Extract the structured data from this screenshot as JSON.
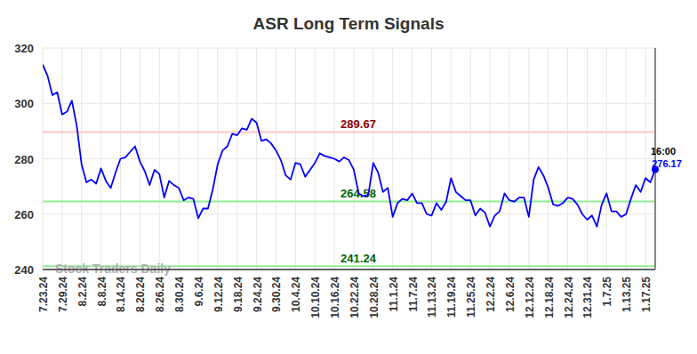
{
  "chart_data": {
    "type": "line",
    "title": "ASR Long Term Signals",
    "categories": [
      "7.23.24",
      null,
      null,
      null,
      "7.29.24",
      null,
      null,
      null,
      "8.2.24",
      null,
      null,
      null,
      "8.8.24",
      null,
      null,
      null,
      "8.14.24",
      null,
      null,
      null,
      "8.20.24",
      null,
      null,
      null,
      "8.26.24",
      null,
      null,
      null,
      "8.30.24",
      null,
      null,
      null,
      "9.6.24",
      null,
      null,
      null,
      "9.12.24",
      null,
      null,
      null,
      "9.18.24",
      null,
      null,
      null,
      "9.24.24",
      null,
      null,
      null,
      "9.30.24",
      null,
      null,
      null,
      "10.4.24",
      null,
      null,
      null,
      "10.10.24",
      null,
      null,
      null,
      "10.16.24",
      null,
      null,
      null,
      "10.22.24",
      null,
      null,
      null,
      "10.28.24",
      null,
      null,
      null,
      "11.1.24",
      null,
      null,
      null,
      "11.7.24",
      null,
      null,
      null,
      "11.13.24",
      null,
      null,
      null,
      "11.19.24",
      null,
      null,
      null,
      "11.25.24",
      null,
      null,
      null,
      "12.2.24",
      null,
      null,
      null,
      "12.6.24",
      null,
      null,
      null,
      "12.12.24",
      null,
      null,
      null,
      "12.18.24",
      null,
      null,
      null,
      "12.24.24",
      null,
      null,
      null,
      "12.31.24",
      null,
      null,
      null,
      "1.7.25",
      null,
      null,
      null,
      "1.13.25",
      null,
      null,
      null,
      "1.17.25",
      null,
      null
    ],
    "series": [
      {
        "color": "#0000ff",
        "values": [
          314,
          310,
          303,
          304,
          296,
          297,
          301,
          292,
          278,
          271.5,
          272.5,
          271,
          276.5,
          272,
          269.5,
          275,
          280,
          280.5,
          282.5,
          284.5,
          279,
          275.5,
          270.5,
          276,
          274.5,
          266,
          272,
          270.5,
          269.5,
          265,
          266,
          265.5,
          258.5,
          262,
          262,
          269,
          278,
          283,
          284.5,
          289,
          288.5,
          291,
          290.5,
          294.5,
          293,
          286.5,
          287,
          285.5,
          283,
          279.5,
          274,
          272.5,
          278.5,
          278,
          273.5,
          276,
          278.5,
          282,
          281,
          280.5,
          280,
          279,
          280.5,
          279.5,
          276,
          267.5,
          266.5,
          267,
          278.5,
          275,
          268,
          269.5,
          259,
          264,
          265.5,
          265,
          267.5,
          264,
          264,
          260,
          259.5,
          264,
          261.5,
          264.5,
          273,
          268,
          266.5,
          265,
          265,
          259.5,
          262,
          260.5,
          255.5,
          259.5,
          261,
          267.5,
          265,
          264.5,
          266,
          266,
          259,
          272.5,
          277,
          274,
          269.5,
          263.5,
          263,
          264,
          266,
          265.5,
          263.5,
          260,
          258,
          259.5,
          255.5,
          263.5,
          267.5,
          261,
          261,
          259,
          260,
          265.5,
          270.5,
          268,
          273,
          271.5,
          276.17
        ]
      }
    ],
    "ylim": [
      240,
      320
    ],
    "yticks": [
      240,
      260,
      280,
      300,
      320
    ],
    "grid": true,
    "reference_lines": [
      {
        "value": 289.67,
        "label": "289.67",
        "color": "#ffc4c4",
        "label_color": "#8b0000"
      },
      {
        "value": 264.58,
        "label": "264.58",
        "color": "#90ee90",
        "label_color": "#006400"
      },
      {
        "value": 241.24,
        "label": "241.24",
        "color": "#90ee90",
        "label_color": "#006400"
      }
    ],
    "annotation": "16:00",
    "watermark": "Stock Traders Daily"
  }
}
